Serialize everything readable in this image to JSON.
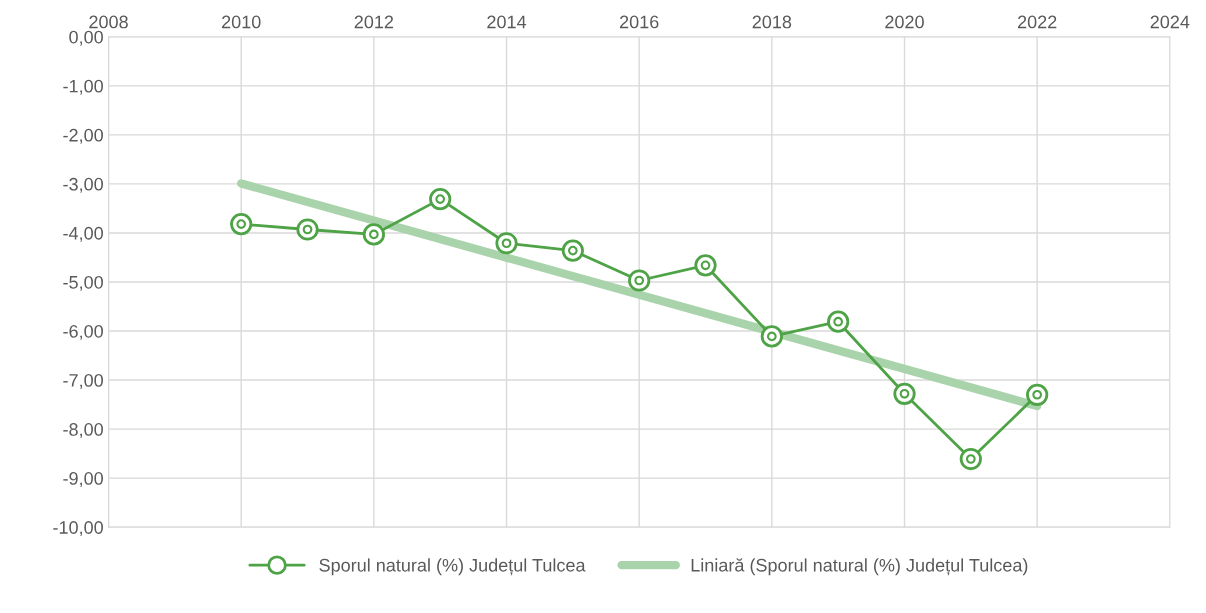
{
  "chart_data": {
    "type": "line",
    "x": [
      2010,
      2011,
      2012,
      2013,
      2014,
      2015,
      2016,
      2017,
      2018,
      2019,
      2020,
      2021,
      2022
    ],
    "series": [
      {
        "name": "Sporul natural (%) Județul Tulcea",
        "color": "#4ea346",
        "marker": "circle",
        "values": [
          -3.82,
          -3.93,
          -4.03,
          -3.31,
          -4.21,
          -4.36,
          -4.97,
          -4.66,
          -6.11,
          -5.81,
          -7.28,
          -8.61,
          -7.3
        ]
      },
      {
        "name": "Liniară (Sporul natural (%) Județul Tulcea)",
        "color": "#a9d3aa",
        "type": "line",
        "marker": "none",
        "x": [
          2010,
          2022
        ],
        "values": [
          -2.99,
          -7.53
        ]
      }
    ],
    "xlim": [
      2008,
      2024
    ],
    "xticks": [
      2008,
      2010,
      2012,
      2014,
      2016,
      2018,
      2020,
      2022,
      2024
    ],
    "ylim": [
      -10,
      0
    ],
    "yticks": [
      {
        "value": 0,
        "label": "0,00"
      },
      {
        "value": -1,
        "label": "-1,00"
      },
      {
        "value": -2,
        "label": "-2,00"
      },
      {
        "value": -3,
        "label": "-3,00"
      },
      {
        "value": -4,
        "label": "-4,00"
      },
      {
        "value": -5,
        "label": "-5,00"
      },
      {
        "value": -6,
        "label": "-6,00"
      },
      {
        "value": -7,
        "label": "-7,00"
      },
      {
        "value": -8,
        "label": "-8,00"
      },
      {
        "value": -9,
        "label": "-9,00"
      },
      {
        "value": -10,
        "label": "-10,00"
      }
    ],
    "grid": true,
    "legend": "bottom"
  }
}
